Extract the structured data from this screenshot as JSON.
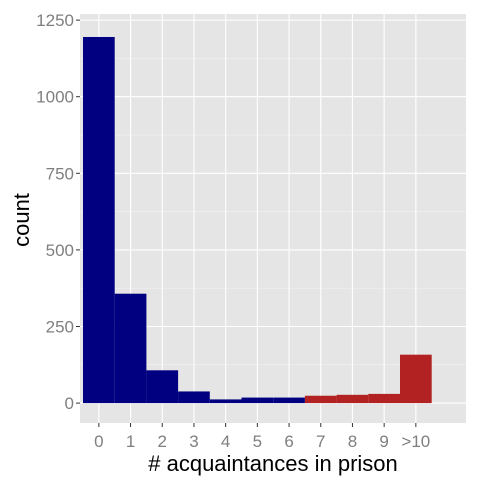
{
  "chart_data": {
    "type": "bar",
    "title": "",
    "xlabel": "# acquaintances in prison",
    "ylabel": "count",
    "categories": [
      "0",
      "1",
      "2",
      "3",
      "4",
      "5",
      "6",
      "7",
      "8",
      "9",
      ">10"
    ],
    "values": [
      1195,
      357,
      107,
      38,
      12,
      18,
      18,
      24,
      27,
      30,
      158
    ],
    "bar_colors": [
      "#000080",
      "#000080",
      "#000080",
      "#000080",
      "#000080",
      "#000080",
      "#000080",
      "#b22222",
      "#b22222",
      "#b22222",
      "#b22222"
    ],
    "yticks": [
      0,
      250,
      500,
      750,
      1000,
      1250
    ],
    "ylim": [
      -65,
      1270
    ],
    "grid": true,
    "legend": "none",
    "panel_color": "#e5e5e5",
    "grid_color": "#ffffff"
  }
}
